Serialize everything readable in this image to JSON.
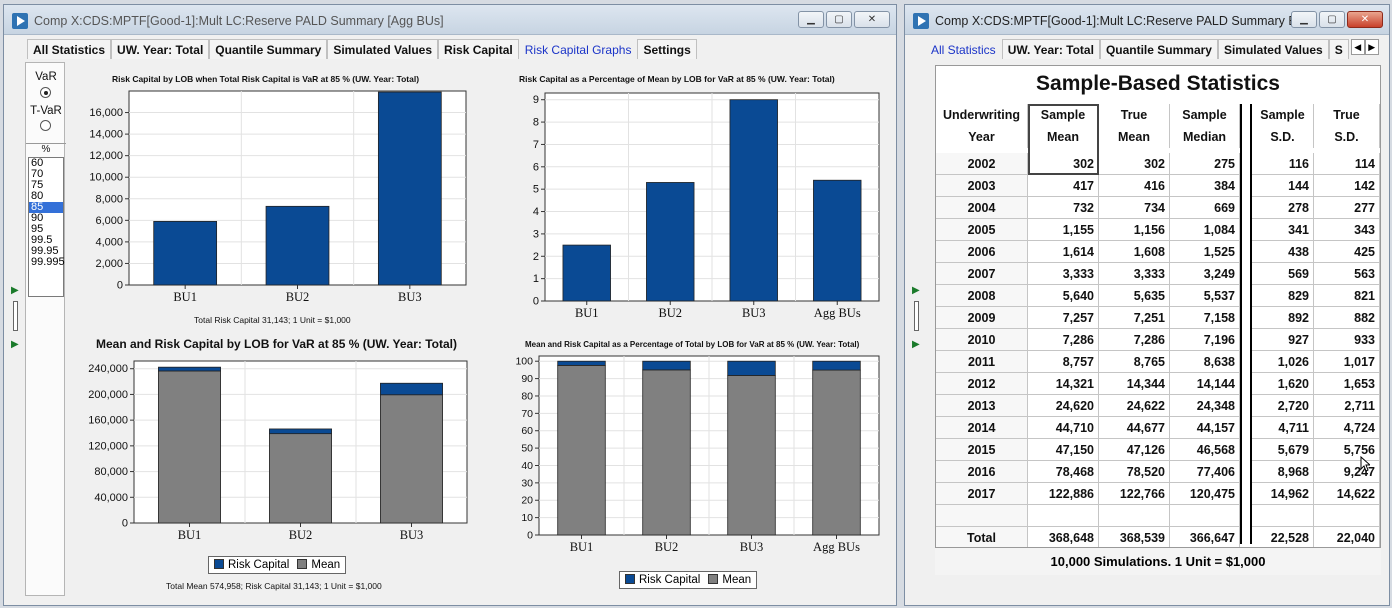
{
  "window1": {
    "title": "Comp X:CDS:MPTF[Good-1]:Mult LC:Reserve PALD Summary [Agg BUs]",
    "tabs": [
      "All Statistics",
      "UW. Year: Total",
      "Quantile Summary",
      "Simulated Values",
      "Risk Capital",
      "Risk Capital Graphs",
      "Settings"
    ],
    "active_tab": "Risk Capital Graphs",
    "measure": {
      "var_label": "VaR",
      "tvar_label": "T-VaR",
      "selected": "VaR"
    },
    "percent_header": "%",
    "percent_options": [
      "60",
      "70",
      "75",
      "80",
      "85",
      "90",
      "95",
      "99.5",
      "99.95",
      "99.995"
    ],
    "selected_percent": "85",
    "footnote1": "Total Risk Capital   31,143; 1 Unit = $1,000",
    "footnote2": "Total Mean 574,958; Risk Capital   31,143; 1 Unit = $1,000"
  },
  "window2": {
    "title": "Comp X:CDS:MPTF[Good-1]:Mult LC:Reserve PALD Summary Ea...",
    "tabs": [
      "All Statistics",
      "UW. Year: Total",
      "Quantile Summary",
      "Simulated Values",
      "S"
    ],
    "active_tab": "All Statistics",
    "table_title": "Sample-Based Statistics",
    "headers": [
      [
        "Underwriting",
        "Year"
      ],
      [
        "Sample",
        "Mean"
      ],
      [
        "True",
        "Mean"
      ],
      [
        "Sample",
        "Median"
      ],
      [
        "Sample",
        "S.D."
      ],
      [
        "True",
        "S.D."
      ]
    ],
    "rows": [
      [
        "2002",
        "302",
        "302",
        "275",
        "116",
        "114"
      ],
      [
        "2003",
        "417",
        "416",
        "384",
        "144",
        "142"
      ],
      [
        "2004",
        "732",
        "734",
        "669",
        "278",
        "277"
      ],
      [
        "2005",
        "1,155",
        "1,156",
        "1,084",
        "341",
        "343"
      ],
      [
        "2006",
        "1,614",
        "1,608",
        "1,525",
        "438",
        "425"
      ],
      [
        "2007",
        "3,333",
        "3,333",
        "3,249",
        "569",
        "563"
      ],
      [
        "2008",
        "5,640",
        "5,635",
        "5,537",
        "829",
        "821"
      ],
      [
        "2009",
        "7,257",
        "7,251",
        "7,158",
        "892",
        "882"
      ],
      [
        "2010",
        "7,286",
        "7,286",
        "7,196",
        "927",
        "933"
      ],
      [
        "2011",
        "8,757",
        "8,765",
        "8,638",
        "1,026",
        "1,017"
      ],
      [
        "2012",
        "14,321",
        "14,344",
        "14,144",
        "1,620",
        "1,653"
      ],
      [
        "2013",
        "24,620",
        "24,622",
        "24,348",
        "2,720",
        "2,711"
      ],
      [
        "2014",
        "44,710",
        "44,677",
        "44,157",
        "4,711",
        "4,724"
      ],
      [
        "2015",
        "47,150",
        "47,126",
        "46,568",
        "5,679",
        "5,756"
      ],
      [
        "2016",
        "78,468",
        "78,520",
        "77,406",
        "8,968",
        "9,247"
      ],
      [
        "2017",
        "122,886",
        "122,766",
        "120,475",
        "14,962",
        "14,622"
      ],
      [
        "",
        "",
        "",
        "",
        "",
        ""
      ],
      [
        "Total",
        "368,648",
        "368,539",
        "366,647",
        "22,528",
        "22,040"
      ]
    ],
    "footer": "10,000 Simulations. 1 Unit = $1,000"
  },
  "colors": {
    "risk_capital": "#0a4a94",
    "mean": "#808080",
    "active_tab": "#1b34c8"
  },
  "chart_data": [
    {
      "type": "bar",
      "title": "Risk Capital by LOB when Total Risk Capital is VaR at 85 % (UW. Year: Total)",
      "categories": [
        "BU1",
        "BU2",
        "BU3"
      ],
      "values": [
        5900,
        7300,
        17900
      ],
      "ylim": [
        0,
        18000
      ],
      "yticks": [
        "0",
        "2,000",
        "4,000",
        "6,000",
        "8,000",
        "10,000",
        "12,000",
        "14,000",
        "16,000"
      ],
      "ytick_values": [
        0,
        2000,
        4000,
        6000,
        8000,
        10000,
        12000,
        14000,
        16000
      ],
      "grid": true
    },
    {
      "type": "bar",
      "title": "Risk Capital as a Percentage of Mean by LOB for VaR at 85 % (UW. Year: Total)",
      "categories": [
        "BU1",
        "BU2",
        "BU3",
        "Agg BUs"
      ],
      "values": [
        2.5,
        5.3,
        9.0,
        5.4
      ],
      "ylim": [
        0,
        9.3
      ],
      "yticks": [
        "0",
        "1",
        "2",
        "3",
        "4",
        "5",
        "6",
        "7",
        "8",
        "9"
      ],
      "ytick_values": [
        0,
        1,
        2,
        3,
        4,
        5,
        6,
        7,
        8,
        9
      ],
      "grid": true
    },
    {
      "type": "bar",
      "stacked": true,
      "title": "Mean and Risk Capital by LOB for VaR at 85 % (UW. Year: Total)",
      "categories": [
        "BU1",
        "BU2",
        "BU3"
      ],
      "series": [
        {
          "name": "Mean",
          "values": [
            236500,
            139000,
            199500
          ]
        },
        {
          "name": "Risk Capital",
          "values": [
            5900,
            7300,
            17900
          ]
        }
      ],
      "ylim": [
        0,
        252000
      ],
      "yticks": [
        "0",
        "40,000",
        "80,000",
        "120,000",
        "160,000",
        "200,000",
        "240,000"
      ],
      "ytick_values": [
        0,
        40000,
        80000,
        120000,
        160000,
        200000,
        240000
      ],
      "legend": [
        "Risk Capital",
        "Mean"
      ],
      "grid": true
    },
    {
      "type": "bar",
      "stacked": true,
      "title": "Mean and Risk Capital as a Percentage of Total by LOB for VaR at 85 % (UW. Year: Total)",
      "categories": [
        "BU1",
        "BU2",
        "BU3",
        "Agg BUs"
      ],
      "series": [
        {
          "name": "Mean",
          "values": [
            97.6,
            95.0,
            91.8,
            94.9
          ]
        },
        {
          "name": "Risk Capital",
          "values": [
            2.4,
            5.0,
            8.2,
            5.1
          ]
        }
      ],
      "ylim": [
        0,
        103
      ],
      "yticks": [
        "0",
        "10",
        "20",
        "30",
        "40",
        "50",
        "60",
        "70",
        "80",
        "90",
        "100"
      ],
      "ytick_values": [
        0,
        10,
        20,
        30,
        40,
        50,
        60,
        70,
        80,
        90,
        100
      ],
      "legend": [
        "Risk Capital",
        "Mean"
      ],
      "grid": true
    }
  ]
}
